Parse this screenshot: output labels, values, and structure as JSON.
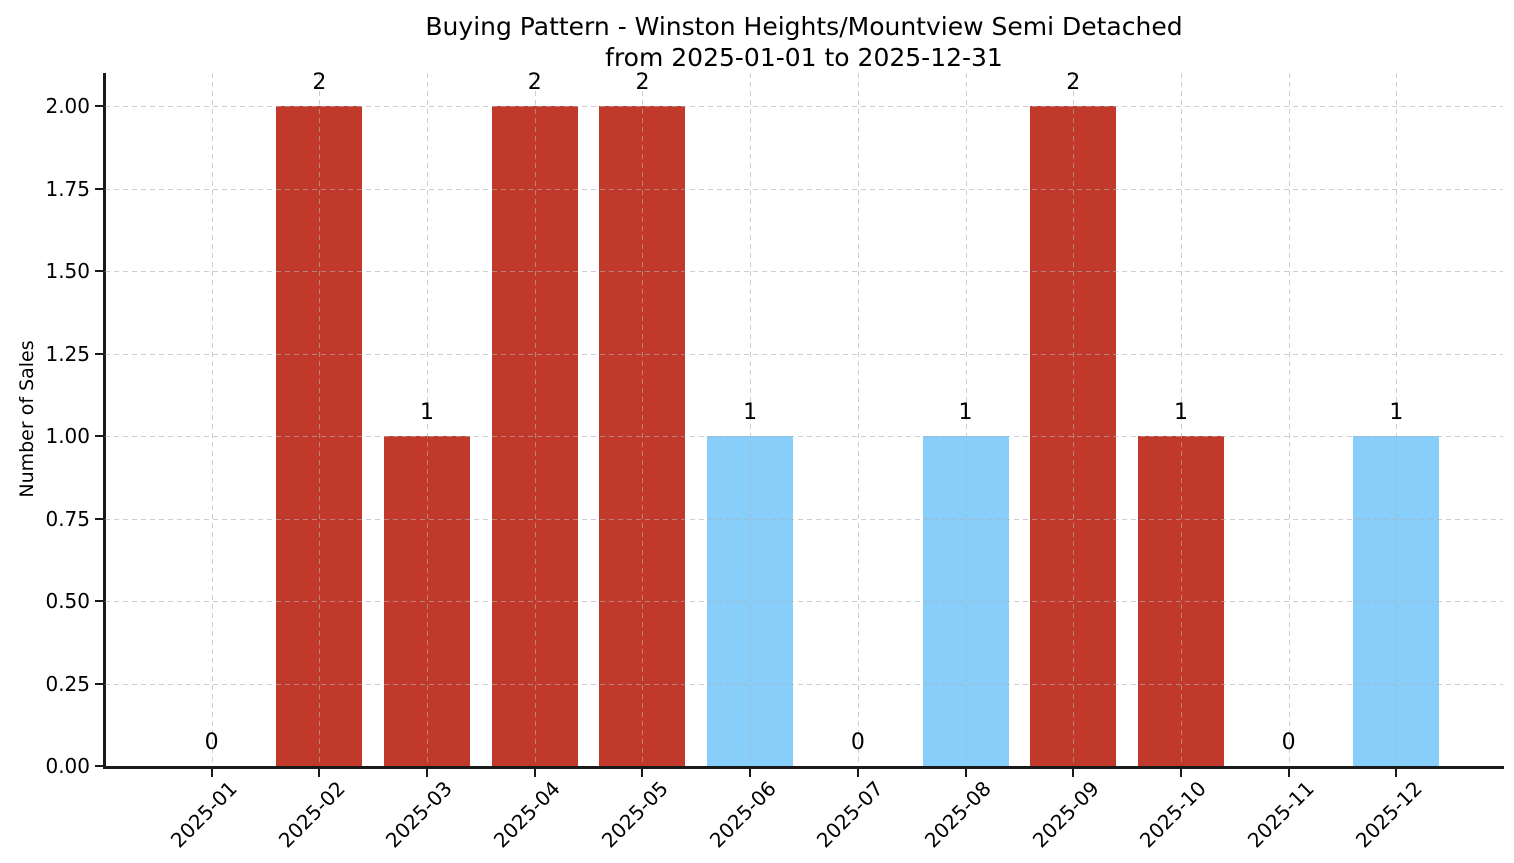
{
  "chart_data": {
    "type": "bar",
    "title": "Buying Pattern - Winston Heights/Mountview Semi Detached",
    "subtitle": "from 2025-01-01 to 2025-12-31",
    "xlabel": "",
    "ylabel": "Number of Sales",
    "categories": [
      "2025-01",
      "2025-02",
      "2025-03",
      "2025-04",
      "2025-05",
      "2025-06",
      "2025-07",
      "2025-08",
      "2025-09",
      "2025-10",
      "2025-11",
      "2025-12"
    ],
    "values": [
      0,
      2,
      1,
      2,
      2,
      1,
      0,
      1,
      2,
      1,
      0,
      1
    ],
    "bar_value_labels": [
      "0",
      "2",
      "1",
      "2",
      "2",
      "1",
      "0",
      "1",
      "2",
      "1",
      "0",
      "1"
    ],
    "bar_colors": [
      null,
      "#c0392b",
      "#c0392b",
      "#c0392b",
      "#c0392b",
      "#87cefa",
      null,
      "#87cefa",
      "#c0392b",
      "#c0392b",
      null,
      "#87cefa"
    ],
    "y_ticks": [
      "0.00",
      "0.25",
      "0.50",
      "0.75",
      "1.00",
      "1.25",
      "1.50",
      "1.75",
      "2.00"
    ],
    "ylim": [
      0,
      2.1
    ],
    "grid": {
      "visible": true,
      "style": "dashed",
      "color": "#b0b0b0"
    },
    "legend_position": "none",
    "colors": {
      "red_bar": "#c0392b",
      "blue_bar": "#87cefa",
      "axis": "#1a1a1a",
      "text": "#000000",
      "background": "#ffffff"
    }
  }
}
